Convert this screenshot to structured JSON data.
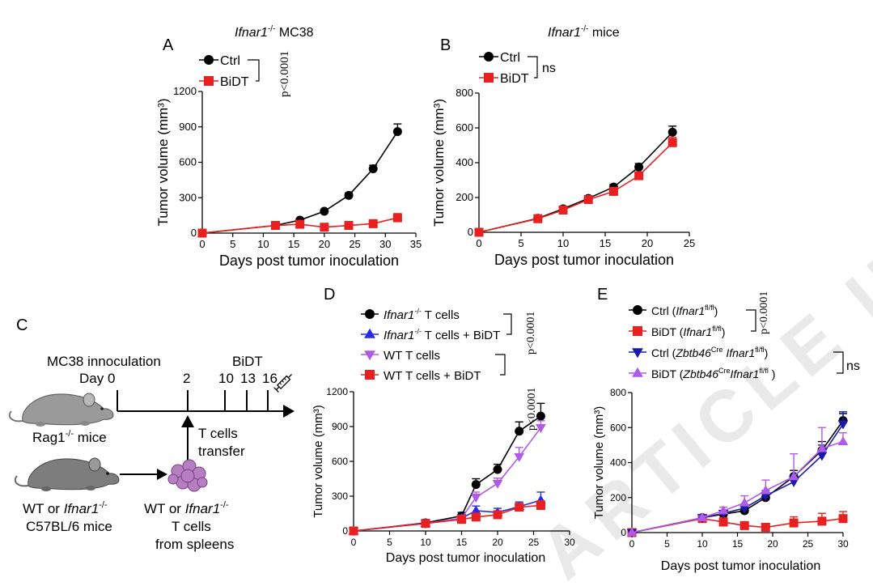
{
  "watermark": "ARTICLE IN PRESS",
  "colors": {
    "ctrl": "#000000",
    "bidt": "#e8201f",
    "blue": "#2a2ae6",
    "purple": "#b05ae8",
    "navy": "#1a1aa8",
    "violet": "#b05ae8"
  },
  "panel_c": {
    "letter": "C",
    "innoc_label": "MC38 innoculation",
    "day_label": "Day 0",
    "day_ticks": [
      "2",
      "10",
      "13",
      "16"
    ],
    "bidt_label": "BiDT",
    "rag_label": "Rag1",
    "rag_sup": "-/-",
    "rag_suffix": " mice",
    "tcells_label1": "T cells",
    "tcells_label2": "transfer",
    "donor_line1_a": "WT or ",
    "donor_line1_b": "Ifnar1",
    "donor_line1_sup": "-/-",
    "donor_line2": "C57BL/6 mice",
    "cells_line1_a": "WT or ",
    "cells_line1_b": "Ifnar1",
    "cells_line1_sup": "-/-",
    "cells_line2": "T cells",
    "cells_line3": "from spleens"
  },
  "chart_data": [
    {
      "id": "A",
      "letter": "A",
      "type": "line",
      "title_italic": "Ifnar1",
      "title_sup": "-/-",
      "title_rest": " MC38",
      "xlabel": "Days post tumor inoculation",
      "ylabel": "Tumor volume (mm³)",
      "xlim": [
        0,
        35
      ],
      "ylim": [
        0,
        1200
      ],
      "xticks": [
        "0",
        "5",
        "10",
        "15",
        "20",
        "25",
        "30",
        "35"
      ],
      "yticks": [
        "0",
        "300",
        "600",
        "900",
        "1200"
      ],
      "series": [
        {
          "name": "Ctrl",
          "color": "#000000",
          "marker": "circle",
          "x": [
            0,
            12,
            16,
            20,
            24,
            28,
            32
          ],
          "y": [
            0,
            65,
            110,
            185,
            320,
            545,
            860
          ],
          "err": [
            0,
            12,
            12,
            15,
            20,
            30,
            65
          ]
        },
        {
          "name": "BiDT",
          "color": "#e8201f",
          "marker": "square",
          "x": [
            0,
            12,
            16,
            20,
            24,
            28,
            32
          ],
          "y": [
            0,
            65,
            75,
            50,
            65,
            80,
            130
          ],
          "err": [
            0,
            10,
            12,
            12,
            15,
            20,
            35
          ]
        }
      ],
      "stat": "p<0.0001"
    },
    {
      "id": "B",
      "letter": "B",
      "type": "line",
      "title_italic": "Ifnar1",
      "title_sup": "-/-",
      "title_rest": " mice",
      "xlabel": "Days post tumor inoculation",
      "ylabel": "Tumor volume (mm³)",
      "xlim": [
        0,
        25
      ],
      "ylim": [
        0,
        800
      ],
      "xticks": [
        "0",
        "5",
        "10",
        "15",
        "20",
        "25"
      ],
      "yticks": [
        "0",
        "200",
        "400",
        "600",
        "800"
      ],
      "series": [
        {
          "name": "Ctrl",
          "color": "#000000",
          "marker": "circle",
          "x": [
            0,
            7,
            10,
            13,
            16,
            19,
            23
          ],
          "y": [
            0,
            80,
            135,
            195,
            260,
            375,
            575
          ],
          "err": [
            0,
            8,
            10,
            12,
            15,
            20,
            35
          ]
        },
        {
          "name": "BiDT",
          "color": "#e8201f",
          "marker": "square",
          "x": [
            0,
            7,
            10,
            13,
            16,
            19,
            23
          ],
          "y": [
            0,
            78,
            128,
            188,
            235,
            325,
            515
          ],
          "err": [
            0,
            8,
            10,
            12,
            15,
            20,
            30
          ]
        }
      ],
      "stat": "ns"
    },
    {
      "id": "D",
      "letter": "D",
      "type": "line",
      "xlabel": "Days post tumor inoculation",
      "ylabel": "Tumor volume (mm³)",
      "xlim": [
        0,
        30
      ],
      "ylim": [
        0,
        1200
      ],
      "xticks": [
        "0",
        "5",
        "10",
        "15",
        "20",
        "25",
        "30"
      ],
      "yticks": [
        "0",
        "300",
        "600",
        "900",
        "1200"
      ],
      "series": [
        {
          "name": "Ifnar1-/- T cells",
          "legend_italic": "Ifnar1",
          "legend_sup": "-/-",
          "legend_rest": " T cells",
          "color": "#000000",
          "marker": "circle",
          "x": [
            0,
            10,
            15,
            17,
            20,
            23,
            26
          ],
          "y": [
            0,
            70,
            130,
            400,
            530,
            860,
            990
          ],
          "err": [
            0,
            20,
            30,
            50,
            45,
            80,
            110
          ]
        },
        {
          "name": "Ifnar1-/- T cells + BiDT",
          "legend_italic": "Ifnar1",
          "legend_sup": "-/-",
          "legend_rest": " T cells + BiDT",
          "color": "#2a2ae6",
          "marker": "triangle-up",
          "x": [
            0,
            10,
            15,
            17,
            20,
            23,
            26
          ],
          "y": [
            0,
            65,
            110,
            175,
            160,
            210,
            265
          ],
          "err": [
            0,
            15,
            25,
            40,
            35,
            40,
            70
          ]
        },
        {
          "name": "WT T cells",
          "legend_italic": "",
          "legend_sup": "",
          "legend_rest": "WT T cells",
          "color": "#b05ae8",
          "marker": "triangle-down",
          "x": [
            0,
            10,
            15,
            17,
            20,
            23,
            26
          ],
          "y": [
            0,
            65,
            110,
            290,
            410,
            640,
            890
          ],
          "err": [
            0,
            15,
            25,
            45,
            45,
            80,
            60
          ]
        },
        {
          "name": "WT T cells + BiDT",
          "legend_italic": "",
          "legend_sup": "",
          "legend_rest": "WT T cells + BiDT",
          "color": "#e8201f",
          "marker": "square",
          "x": [
            0,
            10,
            15,
            17,
            20,
            23,
            26
          ],
          "y": [
            0,
            65,
            100,
            120,
            140,
            205,
            220
          ],
          "err": [
            0,
            15,
            20,
            30,
            30,
            30,
            40
          ]
        }
      ],
      "stat1": "p<0.0001",
      "stat2": "p<0.0001"
    },
    {
      "id": "E",
      "letter": "E",
      "type": "line",
      "xlabel": "Days post tumor inoculation",
      "ylabel": "Tumor volume (mm³)",
      "xlim": [
        0,
        30
      ],
      "ylim": [
        0,
        800
      ],
      "xticks": [
        "0",
        "5",
        "10",
        "15",
        "20",
        "25",
        "30"
      ],
      "yticks": [
        "0",
        "200",
        "400",
        "600",
        "800"
      ],
      "series": [
        {
          "name": "Ctrl (Ifnar1fl/fl)",
          "legend_pre": "Ctrl (",
          "legend_italic": "Ifnar1",
          "legend_sup": "fl/fl",
          "legend_mid": "",
          "legend_italic2": "",
          "legend_sup2": "",
          "legend_post": ")",
          "color": "#000000",
          "marker": "circle",
          "x": [
            0,
            10,
            13,
            16,
            19,
            23,
            27,
            30
          ],
          "y": [
            0,
            85,
            105,
            125,
            200,
            320,
            470,
            640
          ],
          "err": [
            0,
            10,
            15,
            20,
            25,
            35,
            50,
            40
          ]
        },
        {
          "name": "BiDT (Ifnar1fl/fl)",
          "legend_pre": "BiDT (",
          "legend_italic": "Ifnar1",
          "legend_sup": "fl/fl",
          "legend_mid": "",
          "legend_italic2": "",
          "legend_sup2": "",
          "legend_post": ")",
          "color": "#e8201f",
          "marker": "square",
          "x": [
            0,
            10,
            13,
            16,
            19,
            23,
            27,
            30
          ],
          "y": [
            0,
            80,
            60,
            40,
            30,
            55,
            65,
            80
          ],
          "err": [
            0,
            20,
            25,
            20,
            20,
            35,
            45,
            40
          ]
        },
        {
          "name": "Ctrl (Zbtb46Cre Ifnar1fl/fl)",
          "legend_pre": "Ctrl (",
          "legend_italic": "Zbtb46",
          "legend_sup": "Cre",
          "legend_mid": " ",
          "legend_italic2": "Ifnar1",
          "legend_sup2": "fl/fl",
          "legend_post": ")",
          "color": "#1a1aa8",
          "marker": "triangle-down",
          "x": [
            0,
            10,
            13,
            16,
            19,
            23,
            27,
            30
          ],
          "y": [
            0,
            85,
            110,
            140,
            210,
            290,
            440,
            620
          ],
          "err": [
            0,
            10,
            15,
            20,
            30,
            40,
            60,
            70
          ]
        },
        {
          "name": "BiDT (Zbtb46Cre Ifnar1fl/fl)",
          "legend_pre": "BiDT (",
          "legend_italic": "Zbtb46",
          "legend_sup": "Cre",
          "legend_mid": "",
          "legend_italic2": "Ifnar1",
          "legend_sup2": "fl/fl",
          "legend_post": " )",
          "color": "#b05ae8",
          "marker": "triangle-up",
          "x": [
            0,
            10,
            13,
            16,
            19,
            23,
            27,
            30
          ],
          "y": [
            0,
            85,
            125,
            170,
            240,
            320,
            480,
            520
          ],
          "err": [
            0,
            10,
            20,
            40,
            60,
            130,
            120,
            50
          ]
        }
      ],
      "stat1": "p<0.0001",
      "stat2": "ns"
    }
  ]
}
